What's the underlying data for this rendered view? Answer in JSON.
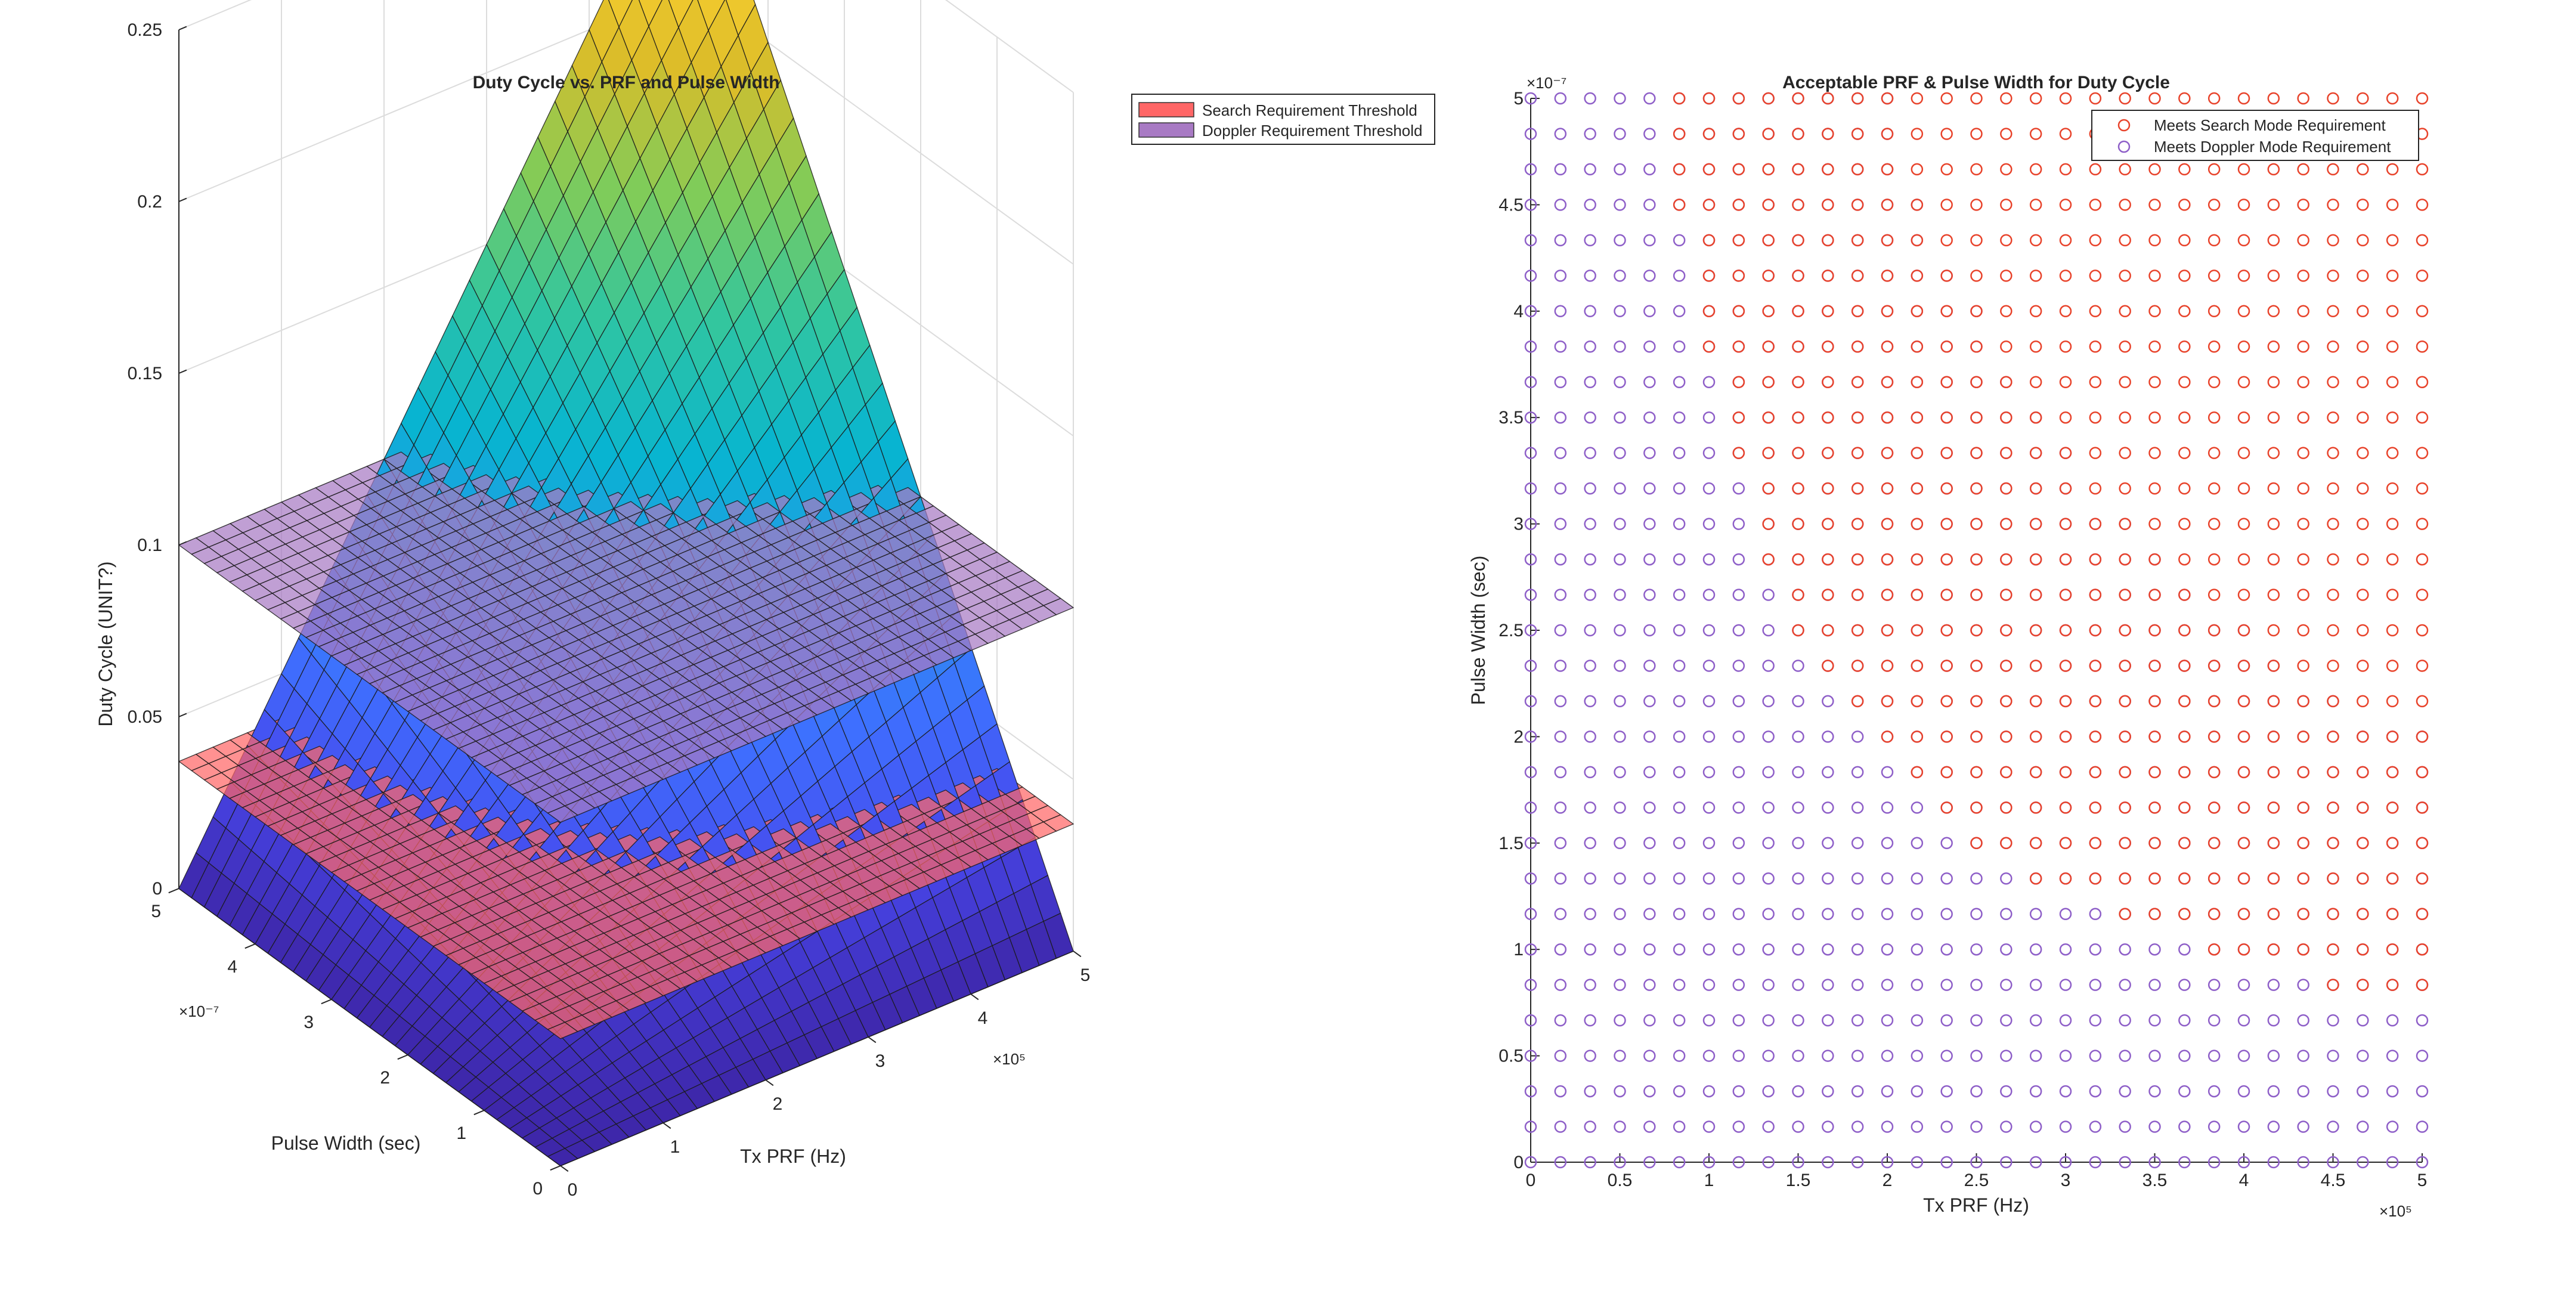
{
  "chart_data": [
    {
      "type": "surface",
      "title": "Duty Cycle vs. PRF and Pulse Width",
      "xlabel": "Tx PRF (Hz)",
      "ylabel": "Pulse Width (sec)",
      "zlabel": "Duty Cycle (UNIT?)",
      "x_exponent": "×10⁵",
      "y_exponent": "×10⁻⁷",
      "x_ticks": [
        "0",
        "1",
        "2",
        "3",
        "4",
        "5"
      ],
      "y_ticks": [
        "0",
        "1",
        "2",
        "3",
        "4",
        "5"
      ],
      "z_ticks": [
        "0",
        "0.05",
        "0.1",
        "0.15",
        "0.2",
        "0.25"
      ],
      "xlim": [
        0,
        500000
      ],
      "ylim": [
        0,
        5e-07
      ],
      "zlim": [
        0,
        0.25
      ],
      "grid": true,
      "surface": {
        "formula": "duty_cycle = PRF × pulse_width",
        "prf_min": 0,
        "prf_max": 500000,
        "pw_min": 0,
        "pw_max": 5e-07,
        "grid_points": 31,
        "colormap": "parula",
        "z_max": 0.25
      },
      "planes": [
        {
          "name": "Search Requirement Threshold",
          "z": 0.037,
          "color": "#ff6666"
        },
        {
          "name": "Doppler Requirement Threshold",
          "z": 0.1,
          "color": "#a87ac4"
        }
      ],
      "legend_position": "top-right"
    },
    {
      "type": "scatter",
      "title": "Acceptable PRF & Pulse Width for Duty Cycle",
      "xlabel": "Tx PRF (Hz)",
      "ylabel": "Pulse Width (sec)",
      "x_exponent": "×10⁵",
      "y_exponent": "×10⁻⁷",
      "x_ticks": [
        "0",
        "0.5",
        "1",
        "1.5",
        "2",
        "2.5",
        "3",
        "3.5",
        "4",
        "4.5",
        "5"
      ],
      "y_ticks": [
        "0",
        "0.5",
        "1",
        "1.5",
        "2",
        "2.5",
        "3",
        "3.5",
        "4",
        "4.5",
        "5"
      ],
      "xlim": [
        0,
        500000
      ],
      "ylim": [
        0,
        5e-07
      ],
      "grid_points": 31,
      "series": [
        {
          "name": "Meets Search Mode Requirement",
          "rule": "PRF × pulse_width ≥ 0.037",
          "color": "#e8432b"
        },
        {
          "name": "Meets Doppler Mode Requirement",
          "rule": "PRF × pulse_width ≤ 0.1",
          "color": "#8e5fc8"
        }
      ],
      "legend_position": "top-right"
    }
  ]
}
